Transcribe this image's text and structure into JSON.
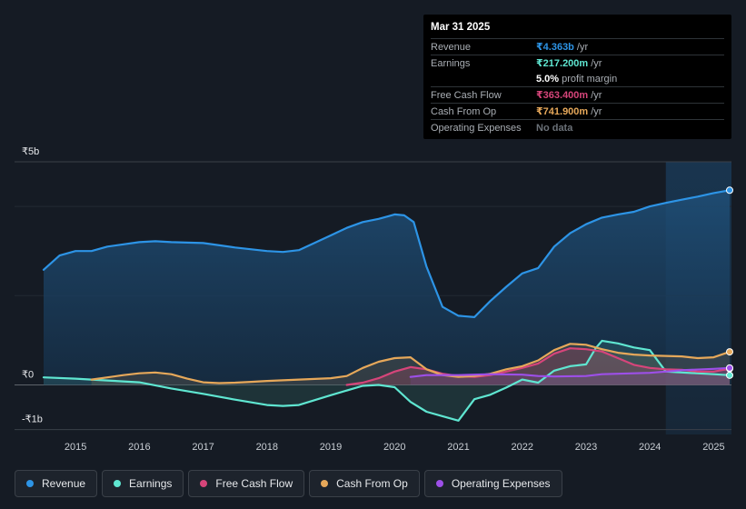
{
  "colors": {
    "revenue": "#2d94e6",
    "earnings": "#5fe6d1",
    "free_cash_flow": "#d6457a",
    "cash_from_op": "#e6a85a",
    "operating_expenses": "#9d4fe8",
    "background": "#151b24",
    "forecast_band": "#1c3a57"
  },
  "tooltip": {
    "date": "Mar 31 2025",
    "rows": [
      {
        "label": "Revenue",
        "value": "₹4.363b",
        "unit": "/yr",
        "color": "#2d94e6"
      },
      {
        "label": "Earnings",
        "value": "₹217.200m",
        "unit": "/yr",
        "color": "#5fe6d1"
      },
      {
        "label": "",
        "value": "5.0%",
        "unit": "profit margin",
        "color": "#ffffff"
      },
      {
        "label": "Free Cash Flow",
        "value": "₹363.400m",
        "unit": "/yr",
        "color": "#d6457a"
      },
      {
        "label": "Cash From Op",
        "value": "₹741.900m",
        "unit": "/yr",
        "color": "#e6a85a"
      },
      {
        "label": "Operating Expenses",
        "value": "No data",
        "unit": "",
        "color": "#6b7178"
      }
    ]
  },
  "legend": [
    {
      "label": "Revenue",
      "color": "#2d94e6"
    },
    {
      "label": "Earnings",
      "color": "#5fe6d1"
    },
    {
      "label": "Free Cash Flow",
      "color": "#d6457a"
    },
    {
      "label": "Cash From Op",
      "color": "#e6a85a"
    },
    {
      "label": "Operating Expenses",
      "color": "#9d4fe8"
    }
  ],
  "chart_data": {
    "type": "area",
    "title": "",
    "unit": "₹ billions",
    "y_tick_labels": [
      "₹5b",
      "₹0",
      "-₹1b"
    ],
    "y_tick_values": [
      5,
      0,
      -1
    ],
    "ylim": [
      -1,
      5
    ],
    "xlim": [
      2014.5,
      2025.25
    ],
    "x_ticks": [
      2015,
      2016,
      2017,
      2018,
      2019,
      2020,
      2021,
      2022,
      2023,
      2024,
      2025
    ],
    "x_tick_labels": [
      "2015",
      "2016",
      "2017",
      "2018",
      "2019",
      "2020",
      "2021",
      "2022",
      "2023",
      "2024",
      "2025"
    ],
    "forecast_start": 2024.25,
    "series": [
      {
        "name": "Revenue",
        "key": "revenue",
        "x": [
          2014.5,
          2014.75,
          2015.0,
          2015.25,
          2015.5,
          2016.0,
          2016.25,
          2016.5,
          2017.0,
          2017.5,
          2018.0,
          2018.25,
          2018.5,
          2019.0,
          2019.25,
          2019.5,
          2019.75,
          2019.9,
          2020.0,
          2020.15,
          2020.3,
          2020.5,
          2020.75,
          2021.0,
          2021.25,
          2021.5,
          2021.75,
          2022.0,
          2022.25,
          2022.5,
          2022.75,
          2023.0,
          2023.25,
          2023.5,
          2023.75,
          2024.0,
          2024.25,
          2024.5,
          2024.75,
          2025.0,
          2025.25
        ],
        "values": [
          2.58,
          2.9,
          3.0,
          3.0,
          3.1,
          3.2,
          3.22,
          3.2,
          3.18,
          3.08,
          3.0,
          2.98,
          3.02,
          3.35,
          3.52,
          3.65,
          3.72,
          3.78,
          3.82,
          3.8,
          3.65,
          2.65,
          1.75,
          1.55,
          1.52,
          1.88,
          2.2,
          2.5,
          2.62,
          3.1,
          3.4,
          3.6,
          3.75,
          3.82,
          3.88,
          4.0,
          4.08,
          4.15,
          4.22,
          4.3,
          4.363
        ]
      },
      {
        "name": "Earnings",
        "key": "earnings",
        "x": [
          2014.5,
          2015.0,
          2015.5,
          2016.0,
          2016.5,
          2017.0,
          2017.5,
          2018.0,
          2018.25,
          2018.5,
          2019.0,
          2019.5,
          2019.75,
          2020.0,
          2020.25,
          2020.5,
          2020.75,
          2021.0,
          2021.25,
          2021.5,
          2021.75,
          2022.0,
          2022.25,
          2022.5,
          2022.75,
          2023.0,
          2023.15,
          2023.25,
          2023.5,
          2023.75,
          2024.0,
          2024.25,
          2024.5,
          2025.0,
          2025.25
        ],
        "values": [
          0.17,
          0.14,
          0.1,
          0.06,
          -0.08,
          -0.2,
          -0.33,
          -0.45,
          -0.47,
          -0.45,
          -0.23,
          -0.02,
          0.0,
          -0.05,
          -0.38,
          -0.6,
          -0.7,
          -0.8,
          -0.32,
          -0.22,
          -0.06,
          0.12,
          0.05,
          0.32,
          0.42,
          0.46,
          0.82,
          0.99,
          0.93,
          0.84,
          0.78,
          0.3,
          0.28,
          0.24,
          0.2172
        ]
      },
      {
        "name": "Free Cash Flow",
        "key": "free_cash_flow",
        "x": [
          2019.25,
          2019.5,
          2019.75,
          2020.0,
          2020.25,
          2020.5,
          2020.75,
          2021.0,
          2021.25,
          2021.5,
          2021.75,
          2022.0,
          2022.25,
          2022.5,
          2022.75,
          2023.0,
          2023.25,
          2023.5,
          2023.75,
          2024.0,
          2024.25,
          2024.5,
          2024.75,
          2025.0,
          2025.25
        ],
        "values": [
          0.0,
          0.05,
          0.15,
          0.3,
          0.4,
          0.35,
          0.25,
          0.2,
          0.18,
          0.22,
          0.3,
          0.38,
          0.48,
          0.7,
          0.82,
          0.8,
          0.75,
          0.6,
          0.45,
          0.38,
          0.35,
          0.34,
          0.3,
          0.3,
          0.3634
        ]
      },
      {
        "name": "Cash From Op",
        "key": "cash_from_op",
        "x": [
          2015.25,
          2015.5,
          2015.75,
          2016.0,
          2016.25,
          2016.5,
          2016.75,
          2017.0,
          2017.25,
          2017.5,
          2017.75,
          2018.0,
          2018.5,
          2019.0,
          2019.25,
          2019.5,
          2019.75,
          2020.0,
          2020.25,
          2020.5,
          2020.75,
          2021.0,
          2021.25,
          2021.5,
          2021.75,
          2022.0,
          2022.25,
          2022.5,
          2022.75,
          2023.0,
          2023.25,
          2023.5,
          2023.75,
          2024.0,
          2024.25,
          2024.5,
          2024.75,
          2025.0,
          2025.25
        ],
        "values": [
          0.12,
          0.17,
          0.22,
          0.26,
          0.28,
          0.24,
          0.14,
          0.06,
          0.04,
          0.05,
          0.07,
          0.09,
          0.12,
          0.15,
          0.2,
          0.38,
          0.52,
          0.6,
          0.62,
          0.35,
          0.22,
          0.18,
          0.2,
          0.25,
          0.35,
          0.42,
          0.55,
          0.78,
          0.92,
          0.9,
          0.8,
          0.72,
          0.68,
          0.66,
          0.65,
          0.64,
          0.6,
          0.62,
          0.7419
        ]
      },
      {
        "name": "Operating Expenses",
        "key": "operating_expenses",
        "x": [
          2020.25,
          2020.5,
          2021.0,
          2021.5,
          2022.0,
          2022.25,
          2022.5,
          2023.0,
          2023.25,
          2023.5,
          2024.0,
          2024.25,
          2024.5,
          2025.0,
          2025.25
        ],
        "values": [
          0.18,
          0.22,
          0.22,
          0.24,
          0.23,
          0.2,
          0.19,
          0.2,
          0.24,
          0.25,
          0.27,
          0.3,
          0.33,
          0.36,
          0.38
        ]
      }
    ]
  }
}
